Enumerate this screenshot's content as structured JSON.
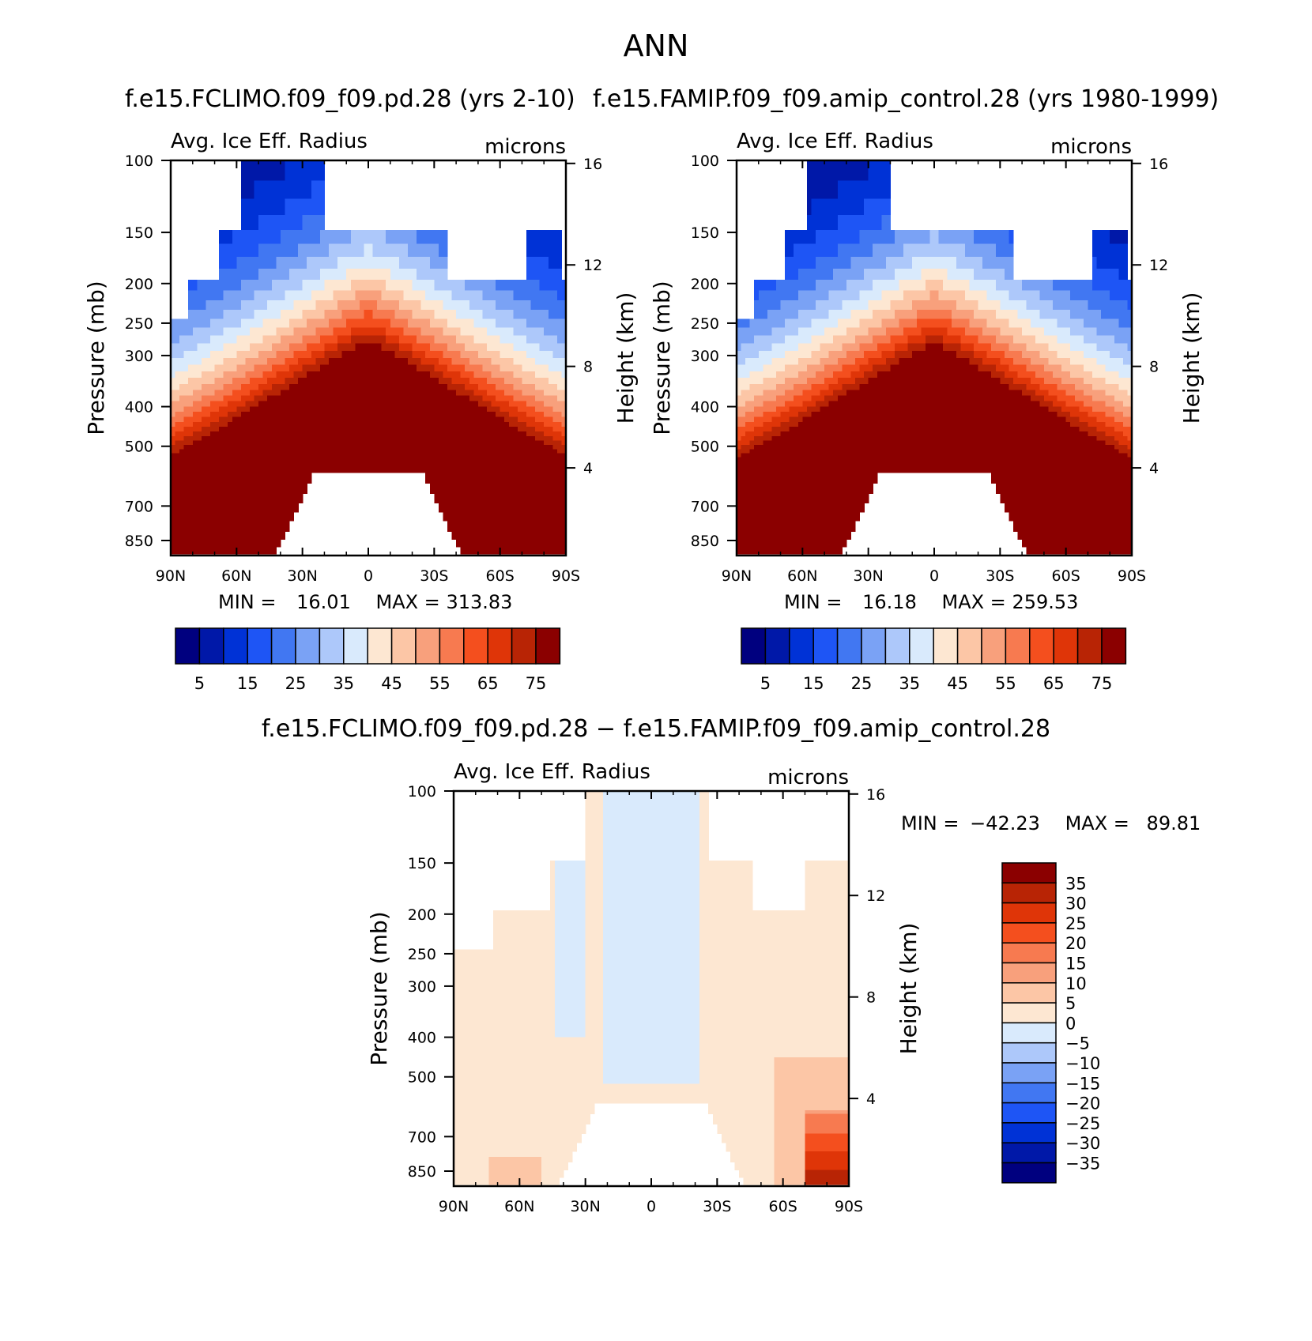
{
  "page": {
    "title": "ANN"
  },
  "panels": {
    "top_left": {
      "case_title": "f.e15.FCLIMO.f09_f09.pd.28 (yrs 2-10)",
      "min_label": "MIN =",
      "min_value": "16.01",
      "max_label": "MAX =",
      "max_value": "313.83"
    },
    "top_right": {
      "case_title": "f.e15.FAMIP.f09_f09.amip_control.28 (yrs 1980-1999)",
      "min_label": "MIN =",
      "min_value": "16.18",
      "max_label": "MAX =",
      "max_value": "259.53"
    },
    "bottom": {
      "case_title": "f.e15.FCLIMO.f09_f09.pd.28 − f.e15.FAMIP.f09_f09.amip_control.28",
      "min_label": "MIN =",
      "min_value": "−42.23",
      "max_label": "MAX =",
      "max_value": "89.81"
    }
  },
  "chart_data": [
    {
      "type": "heatmap",
      "id": "top_left",
      "title": "Avg. Ice Eff. Radius",
      "units": "microns",
      "xlabel": "",
      "ylabel": "Pressure (mb)",
      "y2label": "Height (km)",
      "x_ticks": [
        "90N",
        "60N",
        "30N",
        "0",
        "30S",
        "60S",
        "90S"
      ],
      "y_ticks": [
        100,
        150,
        200,
        250,
        300,
        400,
        500,
        700,
        850
      ],
      "y2_ticks": [
        16,
        12,
        8,
        4
      ],
      "ylim": [
        100,
        925
      ],
      "min": 16.01,
      "max": 313.83,
      "contour_levels": [
        5,
        10,
        15,
        20,
        25,
        30,
        35,
        40,
        45,
        50,
        55,
        60,
        65,
        70,
        75
      ],
      "colorbar_labels": [
        "5",
        "15",
        "25",
        "35",
        "45",
        "55",
        "65",
        "75"
      ]
    },
    {
      "type": "heatmap",
      "id": "top_right",
      "title": "Avg. Ice Eff. Radius",
      "units": "microns",
      "xlabel": "",
      "ylabel": "Pressure (mb)",
      "y2label": "Height (km)",
      "x_ticks": [
        "90N",
        "60N",
        "30N",
        "0",
        "30S",
        "60S",
        "90S"
      ],
      "y_ticks": [
        100,
        150,
        200,
        250,
        300,
        400,
        500,
        700,
        850
      ],
      "y2_ticks": [
        16,
        12,
        8,
        4
      ],
      "ylim": [
        100,
        925
      ],
      "min": 16.18,
      "max": 259.53,
      "contour_levels": [
        5,
        10,
        15,
        20,
        25,
        30,
        35,
        40,
        45,
        50,
        55,
        60,
        65,
        70,
        75
      ],
      "colorbar_labels": [
        "5",
        "15",
        "25",
        "35",
        "45",
        "55",
        "65",
        "75"
      ]
    },
    {
      "type": "heatmap",
      "id": "bottom",
      "title": "Avg. Ice Eff. Radius",
      "units": "microns",
      "xlabel": "",
      "ylabel": "Pressure (mb)",
      "y2label": "Height (km)",
      "x_ticks": [
        "90N",
        "60N",
        "30N",
        "0",
        "30S",
        "60S",
        "90S"
      ],
      "y_ticks": [
        100,
        150,
        200,
        250,
        300,
        400,
        500,
        700,
        850
      ],
      "y2_ticks": [
        16,
        12,
        8,
        4
      ],
      "ylim": [
        100,
        925
      ],
      "min": -42.23,
      "max": 89.81,
      "contour_levels": [
        -35,
        -30,
        -25,
        -20,
        -15,
        -10,
        -5,
        0,
        5,
        10,
        15,
        20,
        25,
        30,
        35
      ],
      "colorbar_labels": [
        "35",
        "30",
        "25",
        "20",
        "15",
        "10",
        "5",
        "0",
        "−5",
        "−10",
        "−15",
        "−20",
        "−25",
        "−30",
        "−35"
      ]
    }
  ],
  "colors": {
    "abs_scale": [
      "#00007f",
      "#0018a8",
      "#0032d6",
      "#1e55f5",
      "#4177f2",
      "#7aa2f5",
      "#adc8fa",
      "#d9eafc",
      "#fde7d2",
      "#fcc6a6",
      "#f8a07c",
      "#f77a50",
      "#f44f1e",
      "#df3508",
      "#b82405",
      "#8b0000"
    ],
    "diff_scale": [
      "#8b0000",
      "#b82405",
      "#df3508",
      "#f44f1e",
      "#f77a50",
      "#f8a07c",
      "#fcc6a6",
      "#fde7d2",
      "#d9eafc",
      "#adc8fa",
      "#7aa2f5",
      "#4177f2",
      "#1e55f5",
      "#0032d6",
      "#0018a8",
      "#00007f"
    ]
  }
}
